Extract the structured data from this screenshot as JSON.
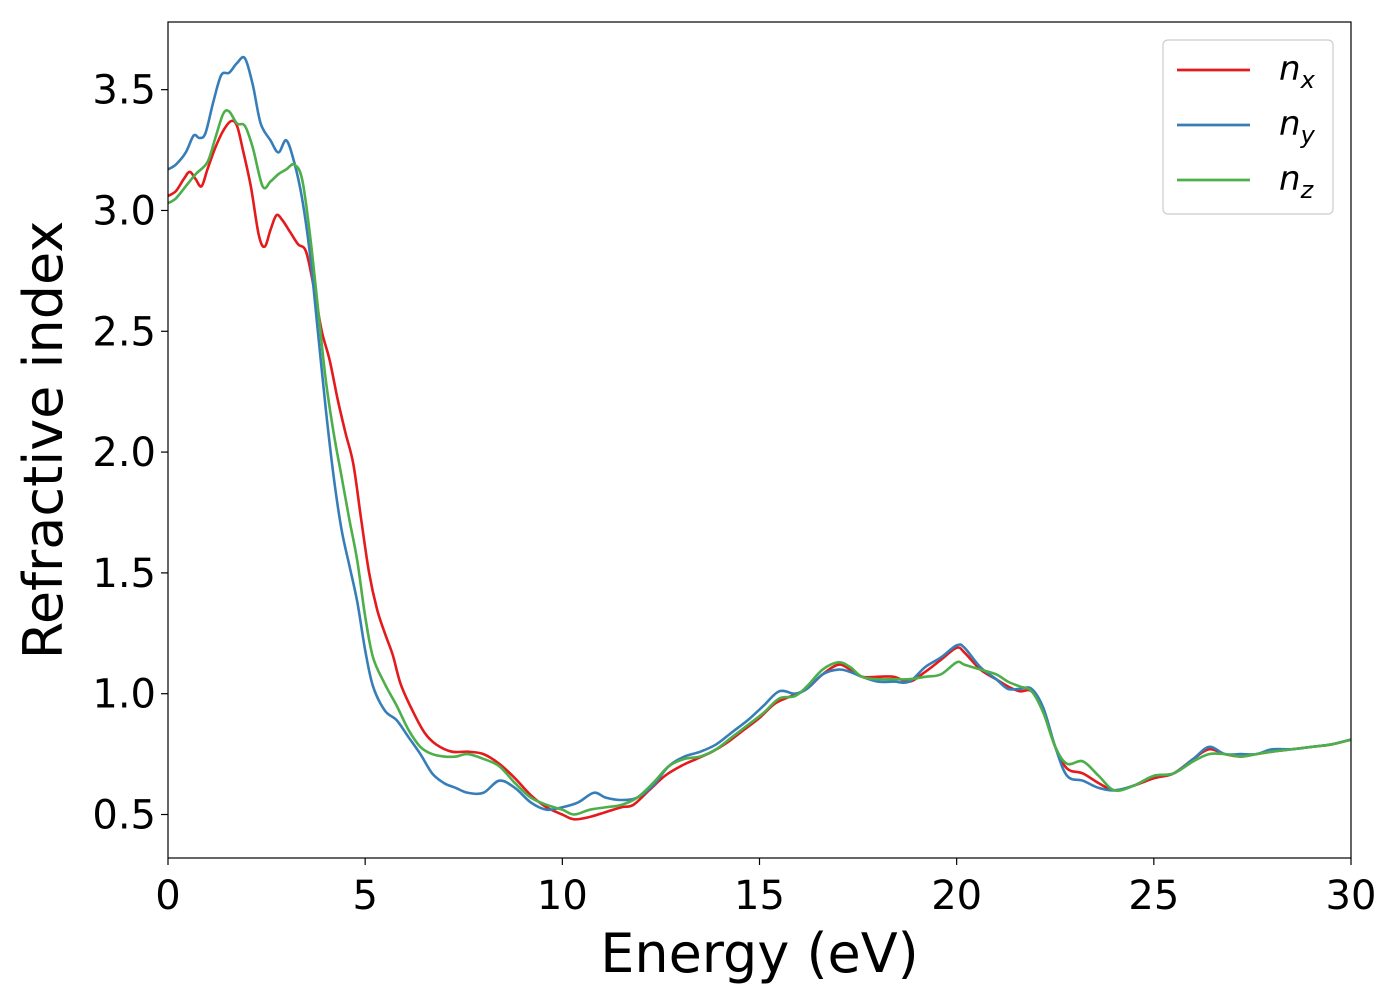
{
  "chart_data": {
    "type": "line",
    "xlabel": "Energy (eV)",
    "ylabel": "Refractive index",
    "xlim": [
      0,
      30
    ],
    "ylim": [
      0.32,
      3.78
    ],
    "xticks": [
      0,
      5,
      10,
      15,
      20,
      25,
      30
    ],
    "yticks": [
      0.5,
      1.0,
      1.5,
      2.0,
      2.5,
      3.0,
      3.5
    ],
    "xtick_labels": [
      "0",
      "5",
      "10",
      "15",
      "20",
      "25",
      "30"
    ],
    "ytick_labels": [
      "0.5",
      "1.0",
      "1.5",
      "2.0",
      "2.5",
      "3.0",
      "3.5"
    ],
    "grid": false,
    "legend_position": "top-right",
    "series": [
      {
        "name": "n_x",
        "label_main": "n",
        "label_sub": "x",
        "color": "#e41a1c",
        "points": [
          [
            0,
            3.06
          ],
          [
            0.2,
            3.08
          ],
          [
            0.4,
            3.13
          ],
          [
            0.55,
            3.16
          ],
          [
            0.7,
            3.13
          ],
          [
            0.85,
            3.1
          ],
          [
            1.0,
            3.17
          ],
          [
            1.2,
            3.26
          ],
          [
            1.4,
            3.33
          ],
          [
            1.6,
            3.37
          ],
          [
            1.75,
            3.35
          ],
          [
            1.9,
            3.25
          ],
          [
            2.1,
            3.1
          ],
          [
            2.3,
            2.9
          ],
          [
            2.45,
            2.85
          ],
          [
            2.6,
            2.92
          ],
          [
            2.75,
            2.98
          ],
          [
            2.9,
            2.96
          ],
          [
            3.1,
            2.91
          ],
          [
            3.3,
            2.86
          ],
          [
            3.5,
            2.83
          ],
          [
            3.7,
            2.68
          ],
          [
            3.9,
            2.5
          ],
          [
            4.1,
            2.38
          ],
          [
            4.3,
            2.22
          ],
          [
            4.5,
            2.08
          ],
          [
            4.7,
            1.95
          ],
          [
            4.9,
            1.72
          ],
          [
            5.1,
            1.5
          ],
          [
            5.3,
            1.35
          ],
          [
            5.5,
            1.25
          ],
          [
            5.7,
            1.16
          ],
          [
            5.9,
            1.04
          ],
          [
            6.2,
            0.93
          ],
          [
            6.5,
            0.84
          ],
          [
            6.8,
            0.79
          ],
          [
            7.2,
            0.76
          ],
          [
            7.6,
            0.76
          ],
          [
            8.0,
            0.75
          ],
          [
            8.4,
            0.71
          ],
          [
            8.8,
            0.65
          ],
          [
            9.2,
            0.58
          ],
          [
            9.6,
            0.53
          ],
          [
            10.0,
            0.5
          ],
          [
            10.3,
            0.48
          ],
          [
            10.7,
            0.49
          ],
          [
            11.1,
            0.51
          ],
          [
            11.5,
            0.53
          ],
          [
            11.8,
            0.54
          ],
          [
            12.2,
            0.6
          ],
          [
            12.6,
            0.66
          ],
          [
            13.0,
            0.7
          ],
          [
            13.4,
            0.73
          ],
          [
            13.8,
            0.76
          ],
          [
            14.2,
            0.8
          ],
          [
            14.6,
            0.85
          ],
          [
            15.0,
            0.9
          ],
          [
            15.4,
            0.96
          ],
          [
            15.8,
            0.99
          ],
          [
            16.2,
            1.02
          ],
          [
            16.6,
            1.08
          ],
          [
            17.0,
            1.12
          ],
          [
            17.3,
            1.1
          ],
          [
            17.6,
            1.07
          ],
          [
            18.0,
            1.07
          ],
          [
            18.4,
            1.07
          ],
          [
            18.8,
            1.05
          ],
          [
            19.2,
            1.09
          ],
          [
            19.6,
            1.14
          ],
          [
            20.0,
            1.19
          ],
          [
            20.2,
            1.17
          ],
          [
            20.6,
            1.1
          ],
          [
            21.0,
            1.06
          ],
          [
            21.3,
            1.03
          ],
          [
            21.6,
            1.01
          ],
          [
            21.9,
            1.01
          ],
          [
            22.2,
            0.93
          ],
          [
            22.5,
            0.78
          ],
          [
            22.8,
            0.69
          ],
          [
            23.2,
            0.67
          ],
          [
            23.6,
            0.63
          ],
          [
            24.0,
            0.6
          ],
          [
            24.5,
            0.62
          ],
          [
            25.0,
            0.65
          ],
          [
            25.5,
            0.67
          ],
          [
            26.0,
            0.73
          ],
          [
            26.4,
            0.77
          ],
          [
            26.8,
            0.75
          ],
          [
            27.2,
            0.74
          ],
          [
            27.6,
            0.75
          ],
          [
            28.0,
            0.76
          ],
          [
            28.5,
            0.77
          ],
          [
            29.0,
            0.78
          ],
          [
            29.5,
            0.79
          ],
          [
            30.0,
            0.81
          ]
        ]
      },
      {
        "name": "n_y",
        "label_main": "n",
        "label_sub": "y",
        "color": "#377eb8",
        "points": [
          [
            0,
            3.17
          ],
          [
            0.2,
            3.19
          ],
          [
            0.45,
            3.24
          ],
          [
            0.65,
            3.31
          ],
          [
            0.8,
            3.3
          ],
          [
            0.95,
            3.32
          ],
          [
            1.15,
            3.45
          ],
          [
            1.35,
            3.56
          ],
          [
            1.55,
            3.57
          ],
          [
            1.75,
            3.61
          ],
          [
            1.95,
            3.63
          ],
          [
            2.15,
            3.52
          ],
          [
            2.35,
            3.36
          ],
          [
            2.6,
            3.29
          ],
          [
            2.8,
            3.24
          ],
          [
            3.0,
            3.29
          ],
          [
            3.2,
            3.2
          ],
          [
            3.4,
            3.05
          ],
          [
            3.6,
            2.82
          ],
          [
            3.8,
            2.5
          ],
          [
            4.0,
            2.18
          ],
          [
            4.2,
            1.9
          ],
          [
            4.4,
            1.68
          ],
          [
            4.6,
            1.53
          ],
          [
            4.8,
            1.38
          ],
          [
            5.0,
            1.18
          ],
          [
            5.2,
            1.03
          ],
          [
            5.5,
            0.93
          ],
          [
            5.8,
            0.89
          ],
          [
            6.1,
            0.82
          ],
          [
            6.4,
            0.75
          ],
          [
            6.7,
            0.67
          ],
          [
            7.0,
            0.63
          ],
          [
            7.3,
            0.61
          ],
          [
            7.6,
            0.59
          ],
          [
            8.0,
            0.59
          ],
          [
            8.4,
            0.64
          ],
          [
            8.8,
            0.61
          ],
          [
            9.2,
            0.55
          ],
          [
            9.6,
            0.52
          ],
          [
            10.0,
            0.53
          ],
          [
            10.4,
            0.55
          ],
          [
            10.8,
            0.59
          ],
          [
            11.1,
            0.57
          ],
          [
            11.5,
            0.56
          ],
          [
            11.9,
            0.57
          ],
          [
            12.3,
            0.62
          ],
          [
            12.7,
            0.7
          ],
          [
            13.1,
            0.74
          ],
          [
            13.5,
            0.76
          ],
          [
            13.9,
            0.79
          ],
          [
            14.3,
            0.84
          ],
          [
            14.7,
            0.89
          ],
          [
            15.1,
            0.95
          ],
          [
            15.5,
            1.01
          ],
          [
            15.9,
            1.0
          ],
          [
            16.2,
            1.02
          ],
          [
            16.6,
            1.08
          ],
          [
            17.0,
            1.1
          ],
          [
            17.3,
            1.09
          ],
          [
            17.6,
            1.07
          ],
          [
            18.0,
            1.05
          ],
          [
            18.4,
            1.05
          ],
          [
            18.8,
            1.05
          ],
          [
            19.2,
            1.11
          ],
          [
            19.6,
            1.15
          ],
          [
            20.0,
            1.2
          ],
          [
            20.2,
            1.19
          ],
          [
            20.6,
            1.11
          ],
          [
            21.0,
            1.06
          ],
          [
            21.3,
            1.02
          ],
          [
            21.6,
            1.02
          ],
          [
            21.9,
            1.02
          ],
          [
            22.2,
            0.94
          ],
          [
            22.5,
            0.78
          ],
          [
            22.8,
            0.66
          ],
          [
            23.2,
            0.64
          ],
          [
            23.6,
            0.61
          ],
          [
            24.0,
            0.6
          ],
          [
            24.5,
            0.62
          ],
          [
            25.0,
            0.66
          ],
          [
            25.5,
            0.67
          ],
          [
            26.0,
            0.73
          ],
          [
            26.4,
            0.78
          ],
          [
            26.8,
            0.75
          ],
          [
            27.2,
            0.75
          ],
          [
            27.6,
            0.75
          ],
          [
            28.0,
            0.77
          ],
          [
            28.5,
            0.77
          ],
          [
            29.0,
            0.78
          ],
          [
            29.5,
            0.79
          ],
          [
            30.0,
            0.81
          ]
        ]
      },
      {
        "name": "n_z",
        "label_main": "n",
        "label_sub": "z",
        "color": "#4daf4a",
        "points": [
          [
            0,
            3.03
          ],
          [
            0.2,
            3.05
          ],
          [
            0.45,
            3.1
          ],
          [
            0.7,
            3.15
          ],
          [
            1.0,
            3.2
          ],
          [
            1.2,
            3.3
          ],
          [
            1.4,
            3.4
          ],
          [
            1.55,
            3.41
          ],
          [
            1.75,
            3.36
          ],
          [
            1.95,
            3.35
          ],
          [
            2.15,
            3.26
          ],
          [
            2.4,
            3.1
          ],
          [
            2.6,
            3.12
          ],
          [
            2.8,
            3.15
          ],
          [
            3.0,
            3.17
          ],
          [
            3.2,
            3.19
          ],
          [
            3.4,
            3.13
          ],
          [
            3.6,
            2.9
          ],
          [
            3.8,
            2.6
          ],
          [
            4.0,
            2.3
          ],
          [
            4.2,
            2.08
          ],
          [
            4.4,
            1.9
          ],
          [
            4.6,
            1.72
          ],
          [
            4.8,
            1.55
          ],
          [
            5.0,
            1.32
          ],
          [
            5.2,
            1.15
          ],
          [
            5.5,
            1.04
          ],
          [
            5.8,
            0.95
          ],
          [
            6.1,
            0.85
          ],
          [
            6.4,
            0.78
          ],
          [
            6.7,
            0.75
          ],
          [
            7.0,
            0.74
          ],
          [
            7.3,
            0.74
          ],
          [
            7.6,
            0.75
          ],
          [
            8.0,
            0.73
          ],
          [
            8.4,
            0.7
          ],
          [
            8.8,
            0.63
          ],
          [
            9.2,
            0.57
          ],
          [
            9.6,
            0.54
          ],
          [
            10.0,
            0.52
          ],
          [
            10.3,
            0.5
          ],
          [
            10.7,
            0.52
          ],
          [
            11.1,
            0.53
          ],
          [
            11.5,
            0.54
          ],
          [
            11.9,
            0.57
          ],
          [
            12.3,
            0.63
          ],
          [
            12.7,
            0.7
          ],
          [
            13.1,
            0.73
          ],
          [
            13.5,
            0.74
          ],
          [
            13.9,
            0.77
          ],
          [
            14.3,
            0.82
          ],
          [
            14.7,
            0.87
          ],
          [
            15.1,
            0.92
          ],
          [
            15.5,
            0.98
          ],
          [
            15.9,
            0.99
          ],
          [
            16.2,
            1.03
          ],
          [
            16.6,
            1.1
          ],
          [
            17.0,
            1.13
          ],
          [
            17.3,
            1.11
          ],
          [
            17.6,
            1.07
          ],
          [
            18.0,
            1.06
          ],
          [
            18.4,
            1.06
          ],
          [
            18.8,
            1.06
          ],
          [
            19.2,
            1.07
          ],
          [
            19.6,
            1.08
          ],
          [
            20.0,
            1.13
          ],
          [
            20.2,
            1.12
          ],
          [
            20.6,
            1.1
          ],
          [
            21.0,
            1.08
          ],
          [
            21.3,
            1.05
          ],
          [
            21.6,
            1.03
          ],
          [
            21.9,
            1.01
          ],
          [
            22.2,
            0.92
          ],
          [
            22.5,
            0.78
          ],
          [
            22.8,
            0.71
          ],
          [
            23.2,
            0.72
          ],
          [
            23.6,
            0.66
          ],
          [
            24.0,
            0.6
          ],
          [
            24.5,
            0.62
          ],
          [
            25.0,
            0.66
          ],
          [
            25.5,
            0.67
          ],
          [
            26.0,
            0.72
          ],
          [
            26.4,
            0.75
          ],
          [
            26.8,
            0.75
          ],
          [
            27.2,
            0.74
          ],
          [
            27.6,
            0.75
          ],
          [
            28.0,
            0.76
          ],
          [
            28.5,
            0.77
          ],
          [
            29.0,
            0.78
          ],
          [
            29.5,
            0.79
          ],
          [
            30.0,
            0.81
          ]
        ]
      }
    ]
  }
}
